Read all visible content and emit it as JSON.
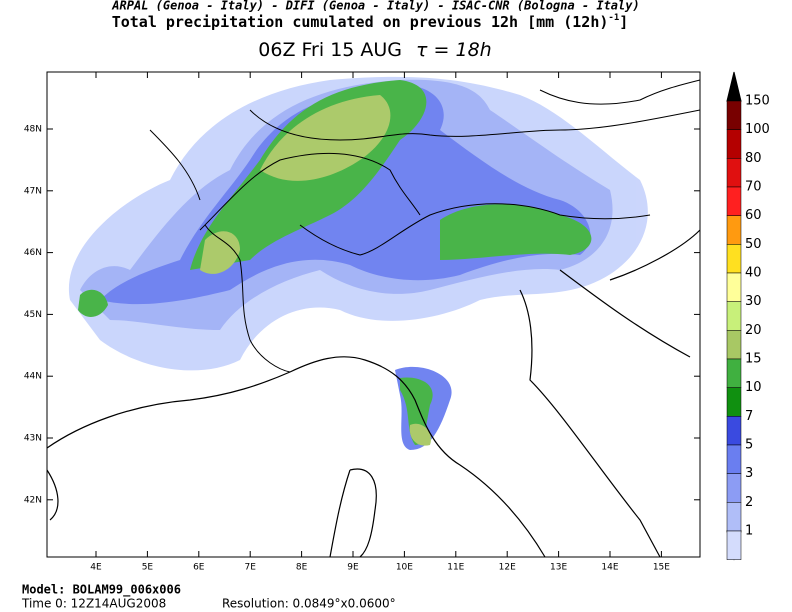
{
  "header": {
    "credits": "ARPAL (Genoa - Italy)  -  DIFI (Genoa - Italy)  -  ISAC-CNR (Bologna - Italy)",
    "title": "Total precipitation cumulated on previous 12h [mm (12h)",
    "title_sup": "-1",
    "title_end": "]",
    "valid_time": "06Z Fri 15 AUG",
    "tau": "τ = 18h"
  },
  "map": {
    "lon_labels": [
      "4E",
      "5E",
      "6E",
      "7E",
      "8E",
      "9E",
      "10E",
      "11E",
      "12E",
      "13E",
      "14E",
      "15E"
    ],
    "lat_labels": [
      "48N",
      "47N",
      "46N",
      "45N",
      "44N",
      "43N",
      "42N"
    ]
  },
  "colorbar": {
    "levels": [
      150,
      100,
      80,
      70,
      60,
      50,
      40,
      30,
      20,
      15,
      10,
      7,
      5,
      3,
      2,
      1
    ],
    "colors": [
      "#780000",
      "#b40000",
      "#e01010",
      "#ff2020",
      "#ff9a10",
      "#ffe020",
      "#ffff99",
      "#c8f07a",
      "#a8c864",
      "#40b040",
      "#109010",
      "#3a4ae0",
      "#6a7ef0",
      "#8c9cf4",
      "#b0bef8",
      "#d4dcfc"
    ]
  },
  "footer": {
    "model": "Model: BOLAM99_006x006",
    "time0": "Time 0: 12Z14AUG2008",
    "resolution": "Resolution: 0.0849°x0.0600°"
  }
}
